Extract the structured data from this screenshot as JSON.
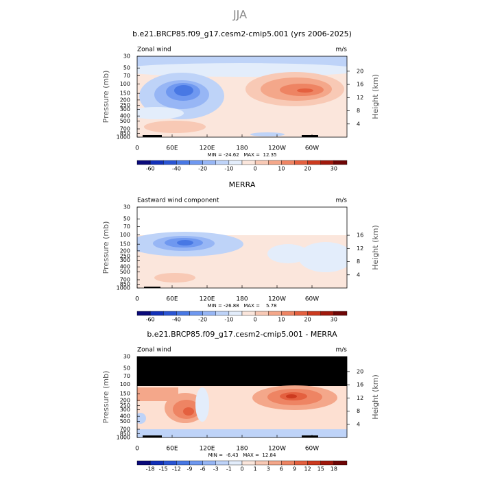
{
  "title": "JJA",
  "panels": [
    {
      "title": "b.e21.BRCP85.f09_g17.cesm2-cmip5.001 (yrs 2006-2025)",
      "left_label": "Zonal wind",
      "units": "m/s",
      "y_label": "Pressure (mb)",
      "y2_label": "Height (km)",
      "pressure_range": [
        30,
        1000
      ],
      "pressure_ticks": [
        30,
        50,
        70,
        100,
        150,
        200,
        250,
        300,
        400,
        500,
        700,
        850,
        1000
      ],
      "height_ticks": [
        4,
        8,
        12,
        16,
        20
      ],
      "lon_ticks": [
        "0",
        "60E",
        "120E",
        "180",
        "120W",
        "60W"
      ],
      "stats": "MIN = -24.62   MAX =  12.35",
      "colorbar": {
        "labels": [
          -60,
          -40,
          -20,
          -10,
          0,
          10,
          20,
          30
        ],
        "colors": [
          "#0a0a7a",
          "#1230b8",
          "#2a55d4",
          "#4878e4",
          "#6f98f0",
          "#97b6f5",
          "#bed3f8",
          "#e3edfb",
          "#fbe6dc",
          "#f8c9b5",
          "#f4a78a",
          "#ee8463",
          "#e4603f",
          "#cc3a1f",
          "#a0180c",
          "#6e0505"
        ]
      }
    },
    {
      "title": "MERRA",
      "left_label": "Eastward wind component",
      "units": "m/s",
      "y_label": "Pressure (mb)",
      "y2_label": "Height (km)",
      "pressure_range": [
        30,
        1000
      ],
      "pressure_ticks": [
        30,
        50,
        70,
        100,
        150,
        200,
        250,
        300,
        400,
        500,
        700,
        850,
        1000
      ],
      "height_ticks": [
        4,
        8,
        12,
        16
      ],
      "lon_ticks": [
        "0",
        "60E",
        "120E",
        "180",
        "120W",
        "60W"
      ],
      "stats": "MIN = -26.88   MAX =    5.78",
      "colorbar": {
        "labels": [
          -60,
          -40,
          -20,
          -10,
          0,
          10,
          20,
          30
        ],
        "colors": [
          "#0a0a7a",
          "#1230b8",
          "#2a55d4",
          "#4878e4",
          "#6f98f0",
          "#97b6f5",
          "#bed3f8",
          "#e3edfb",
          "#fbe6dc",
          "#f8c9b5",
          "#f4a78a",
          "#ee8463",
          "#e4603f",
          "#cc3a1f",
          "#a0180c",
          "#6e0505"
        ]
      }
    },
    {
      "title": "b.e21.BRCP85.f09_g17.cesm2-cmip5.001 - MERRA",
      "left_label": "Zonal wind",
      "units": "m/s",
      "y_label": "Pressure (mb)",
      "y2_label": "Height (km)",
      "pressure_range": [
        30,
        1000
      ],
      "pressure_ticks": [
        30,
        50,
        70,
        100,
        150,
        200,
        250,
        300,
        400,
        500,
        700,
        850,
        1000
      ],
      "height_ticks": [
        4,
        8,
        12,
        16,
        20
      ],
      "lon_ticks": [
        "0",
        "60E",
        "120E",
        "180",
        "120W",
        "60W"
      ],
      "stats": "MIN =  -6.43   MAX =  12.84",
      "colorbar": {
        "labels": [
          -18,
          -15,
          -12,
          -9,
          -6,
          -3,
          -1,
          0,
          1,
          3,
          6,
          9,
          12,
          15,
          18
        ],
        "colors": [
          "#0a0a7a",
          "#1230b8",
          "#2a55d4",
          "#4878e4",
          "#6f98f0",
          "#97b6f5",
          "#bed3f8",
          "#e3edfb",
          "#fbe6dc",
          "#f8c9b5",
          "#f4a78a",
          "#ee8463",
          "#e4603f",
          "#cc3a1f",
          "#a0180c",
          "#6e0505"
        ]
      }
    }
  ]
}
